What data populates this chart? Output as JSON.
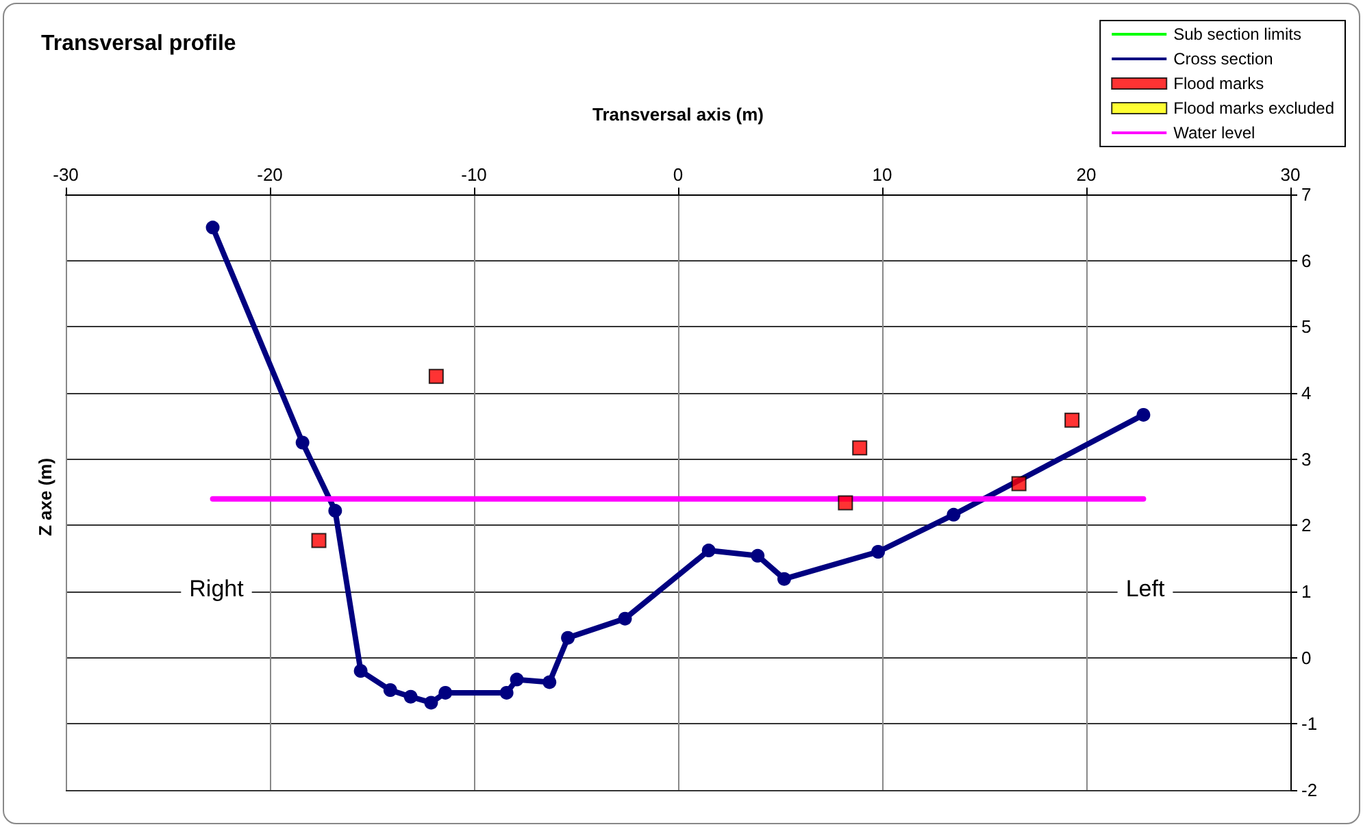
{
  "chart_data": {
    "type": "line",
    "title": "Transversal profile",
    "xlabel": "Transversal axis (m)",
    "ylabel": "Z axe (m)",
    "xlim": [
      -30,
      30
    ],
    "xticks": [
      -30,
      -20,
      -10,
      0,
      10,
      20,
      30
    ],
    "ylim": [
      -2,
      7
    ],
    "yticks": [
      -2,
      -1,
      0,
      1,
      2,
      3,
      4,
      5,
      6,
      7
    ],
    "grid": true,
    "legend": "top right",
    "annotations": [
      "Right",
      "Left"
    ],
    "series": [
      {
        "name": "Sub section limits",
        "color": "#00ff00",
        "marker": "none"
      },
      {
        "name": "Cross section",
        "color": "#000080",
        "marker": "circle",
        "line_style": "solid",
        "x": [
          -22.8,
          -18.4,
          -16.8,
          -15.55,
          -14.1,
          -13.1,
          -12.1,
          -11.4,
          -8.4,
          -7.9,
          -6.3,
          -5.4,
          -2.6,
          1.5,
          3.9,
          5.2,
          9.8,
          13.5,
          22.8
        ],
        "values": [
          6.5,
          3.25,
          2.22,
          -0.2,
          -0.49,
          -0.59,
          -0.68,
          -0.53,
          -0.53,
          -0.33,
          -0.37,
          0.3,
          0.59,
          1.62,
          1.54,
          1.19,
          1.6,
          2.16,
          3.67
        ]
      },
      {
        "name": "Flood marks",
        "type": "scatter",
        "color": "#ff0000",
        "marker": "square",
        "x": [
          -11.85,
          -17.6,
          8.9,
          8.2,
          16.7,
          19.3
        ],
        "values": [
          4.25,
          1.77,
          3.17,
          2.34,
          2.63,
          3.59
        ]
      },
      {
        "name": "Flood marks excluded",
        "type": "scatter",
        "color": "#ffff00",
        "marker": "square"
      },
      {
        "name": "Water level",
        "color": "#ff00ff",
        "marker": "none",
        "line_style": "solid",
        "x": [
          -22.8,
          22.8
        ],
        "values": [
          2.4,
          2.4
        ]
      }
    ]
  }
}
